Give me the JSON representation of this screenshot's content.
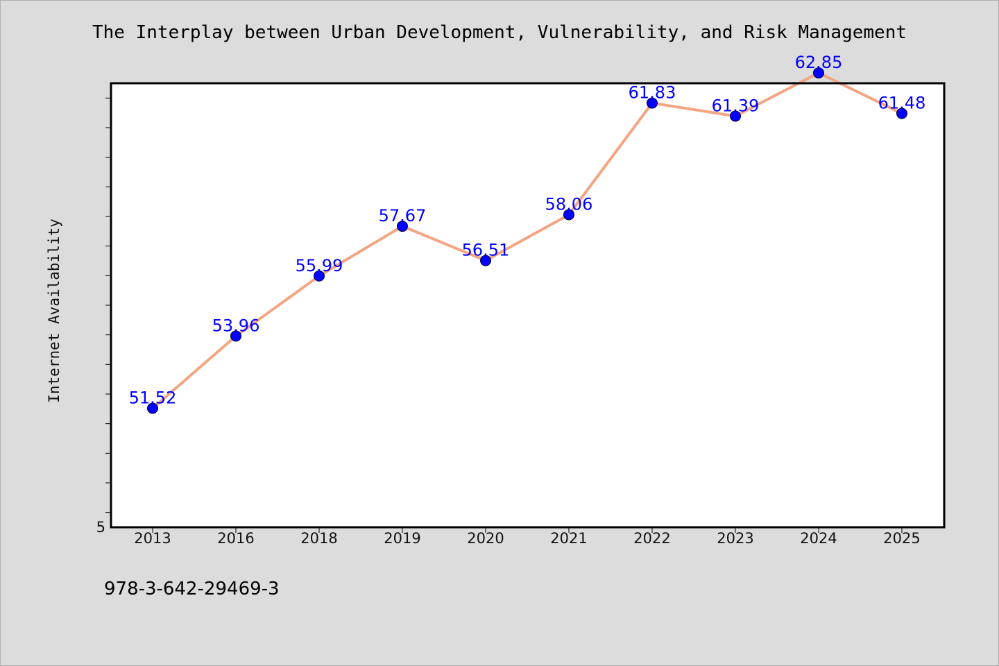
{
  "chart_data": {
    "type": "line",
    "title": "The Interplay between Urban Development, Vulnerability, and Risk Management",
    "xlabel": "",
    "ylabel": "Internet Availability",
    "categories": [
      "2013",
      "2016",
      "2018",
      "2019",
      "2020",
      "2021",
      "2022",
      "2023",
      "2024",
      "2025"
    ],
    "series": [
      {
        "values": [
          51.52,
          53.96,
          55.99,
          57.67,
          56.51,
          58.06,
          61.83,
          61.39,
          62.85,
          61.48
        ],
        "data_labels": [
          "51.52",
          "53.96",
          "55.99",
          "57.67",
          "56.51",
          "58.06",
          "61.83",
          "61.39",
          "62.85",
          "61.48"
        ]
      }
    ],
    "y_tick_label": "5",
    "ylim": [
      47.5,
      62.5
    ],
    "ytick_step": 1,
    "grid": false,
    "legend": "none",
    "colors": {
      "line": "#f4a582",
      "marker": "#0000ff",
      "data_label": "#0000ff",
      "axes_frame": "#000000",
      "plot_background": "#ffffff",
      "figure_background": "#dcdcdc"
    }
  },
  "footer": {
    "code": "978-3-642-29469-3"
  }
}
